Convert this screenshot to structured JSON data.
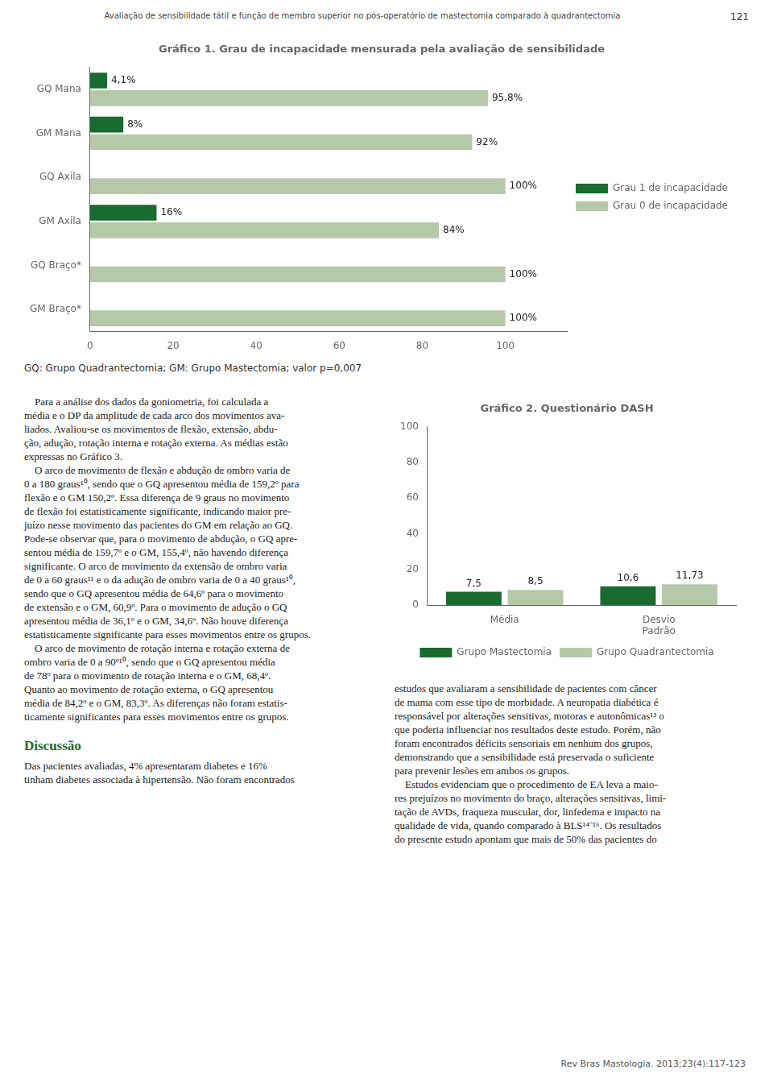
{
  "page_title": "Avaliação de sensibilidade tátil e função de membro superior no pós-operatório de mastectomia comparado à quadrantectomia",
  "page_number": "121",
  "chart_data": [
    {
      "type": "bar",
      "orientation": "horizontal",
      "title": "Gráfico 1. Grau de incapacidade mensurada pela avaliação de sensibilidade",
      "annotations": [
        "GQ: Grupo Quadrantectomia; GM: Grupo Mastectomia; valor p=0,007"
      ],
      "categories": [
        "GQ Mana",
        "GM Mana",
        "GQ Axila",
        "GM Axila",
        "GQ Braço*",
        "GM Braço*"
      ],
      "series": [
        {
          "name": "Grau 1 de incapacidade",
          "color": "#1a6b2f",
          "values": [
            4.1,
            8.0,
            0.0,
            16.0,
            0.0,
            0.0
          ],
          "value_labels": [
            "4,1%",
            "8%",
            null,
            "16%",
            null,
            null
          ]
        },
        {
          "name": "Grau 0 de incapacidade",
          "color": "#b5c9a8",
          "values": [
            95.8,
            92.0,
            100.0,
            84.0,
            100.0,
            100.0
          ],
          "value_labels": [
            "95,8%",
            "92%",
            "100%",
            "84%",
            "100%",
            "100%"
          ]
        }
      ],
      "xlim": [
        0,
        115
      ],
      "xticks": [
        0,
        20,
        40,
        60,
        80,
        100
      ],
      "data_labels": true,
      "grid": false,
      "legend": "right"
    },
    {
      "type": "bar",
      "title": "Gráfico 2. Questionário DASH",
      "categories": [
        "Média",
        "Desvio\nPadrão"
      ],
      "series": [
        {
          "name": "Grupo Mastectomia",
          "color": "#1a6b2f",
          "values": [
            7.5,
            10.6
          ],
          "value_labels": [
            "7,5",
            "10,6"
          ]
        },
        {
          "name": "Grupo Quadrantectomia",
          "color": "#b5c9a8",
          "values": [
            8.5,
            11.73
          ],
          "value_labels": [
            "8,5",
            "11,73"
          ]
        }
      ],
      "ylim": [
        0,
        100
      ],
      "yticks": [
        0,
        20,
        40,
        60,
        80,
        100
      ],
      "data_labels": true,
      "grid": false,
      "legend": "bottom"
    }
  ],
  "body_text_left": [
    "    Para a análise dos dados da goniometria, foi calculada a",
    "média e o DP da amplitude de cada arco dos movimentos ava-",
    "liados. Avaliou-se os movimentos de flexão, extensão, abdu-",
    "ção, adução, rotação interna e rotação externa. As médias estão",
    "expressas no Gráfico 3.",
    "    O arco de movimento de flexão e abdução de ombro varia de",
    "0 a 180 graus¹⁰, sendo que o GQ apresentou média de 159,2º para",
    "flexão e o GM 150,2º. Essa diferença de 9 graus no movimento",
    "de flexão foi estatisticamente significante, indicando maior pre-",
    "juízo nesse movimento das pacientes do GM em relação ao GQ.",
    "Pode-se observar que, para o movimento de abdução, o GQ apre-",
    "sentou média de 159,7º e o GM, 155,4º, não havendo diferença",
    "significante. O arco de movimento da extensão de ombro varia",
    "de 0 a 60 graus¹¹ e o da adução de ombro varia de 0 a 40 graus¹⁰,",
    "sendo que o GQ apresentou média de 64,6º para o movimento",
    "de extensão e o GM, 60,9º. Para o movimento de adução o GQ",
    "apresentou média de 36,1º e o GM, 34,6º. Não houve diferença",
    "estatisticamente significante para esses movimentos entre os grupos.",
    "    O arco de movimento de rotação interna e rotação externa de",
    "ombro varia de 0 a 90º¹⁰, sendo que o GQ apresentou média",
    "de 78º para o movimento de rotação interna e o GM, 68,4º.",
    "Quanto ao movimento de rotação externa, o GQ apresentou",
    "média de 84,2º e o GM, 83,3º. As diferenças não foram estatis-",
    "ticamente significantes para esses movimentos entre os grupos."
  ],
  "discussao_title": "Discussão",
  "discussao_text": [
    "Das pacientes avaliadas, 4% apresentaram diabetes e 16%",
    "tinham diabetes associada à hipertensão. Não foram encontrados"
  ],
  "body_text_right": [
    "estudos que avaliaram a sensibilidade de pacientes com câncer",
    "de mama com esse tipo de morbidade. A neuropatia diabética é",
    "responsável por alterações sensitivas, motoras e autonômicas¹³ o",
    "que poderia influenciar nos resultados deste estudo. Porém, não",
    "foram encontrados déficits sensoriais em nenhum dos grupos,",
    "demonstrando que a sensibilidade está preservada o suficiente",
    "para prevenir lesões em ambos os grupos.",
    "    Estudos evidenciam que o procedimento de EA leva a maio-",
    "res prejuízos no movimento do braço, alterações sensitivas, limi-",
    "tação de AVDs, fraqueza muscular, dor, linfedema e impacto na",
    "qualidade de vida, quando comparado à BLS¹⁴⁻¹⁶. Os resultados",
    "do presente estudo apontam que mais de 50% das pacientes do"
  ],
  "footer": "Rev Bras Mastologia. 2013;23(4):117-123"
}
